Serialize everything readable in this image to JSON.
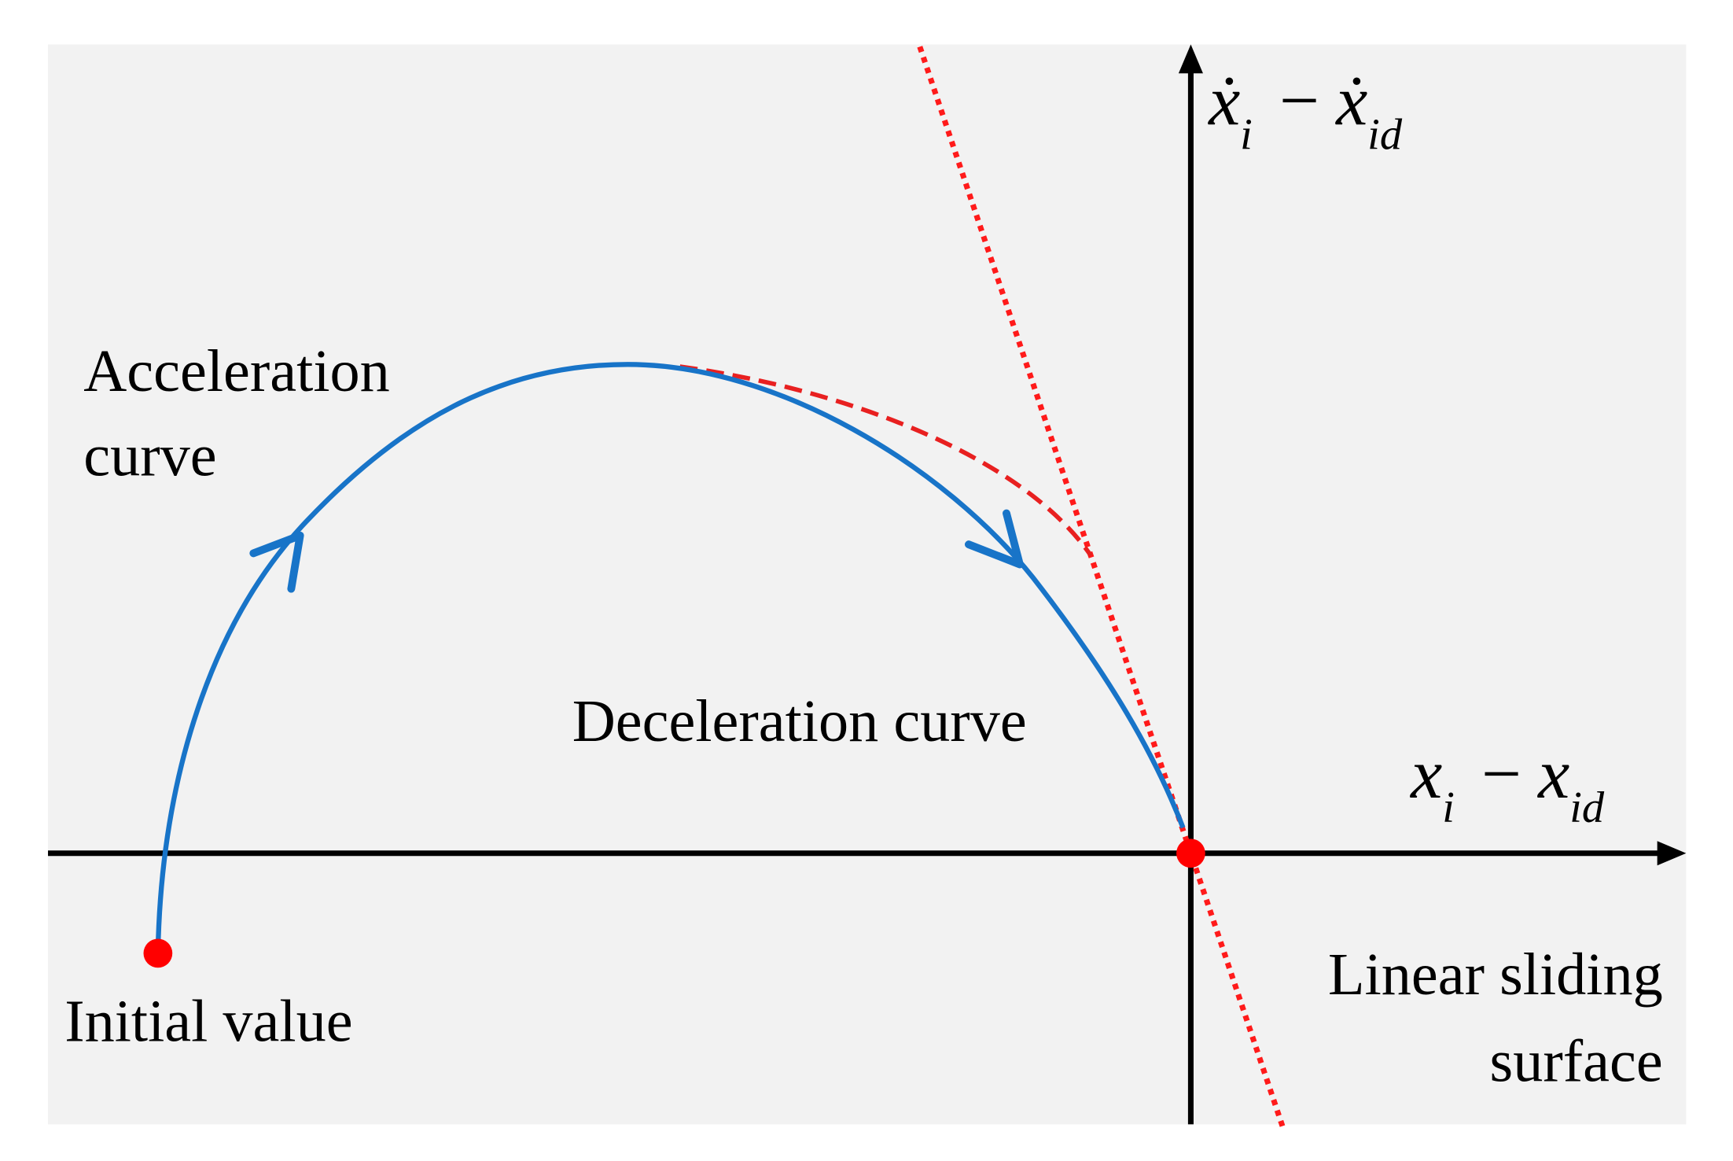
{
  "labels": {
    "acceleration": [
      "Acceleration",
      "curve"
    ],
    "deceleration": "Deceleration curve",
    "initial": "Initial value",
    "sliding": [
      "Linear sliding",
      "surface"
    ]
  },
  "axes": {
    "x": {
      "base1": "x",
      "sub1": "i",
      "op": "−",
      "base2": "x",
      "sub2": "id"
    },
    "y": {
      "base1": "ẋ",
      "sub1": "i",
      "op": "−",
      "base2": "ẋ",
      "sub2": "id"
    }
  }
}
